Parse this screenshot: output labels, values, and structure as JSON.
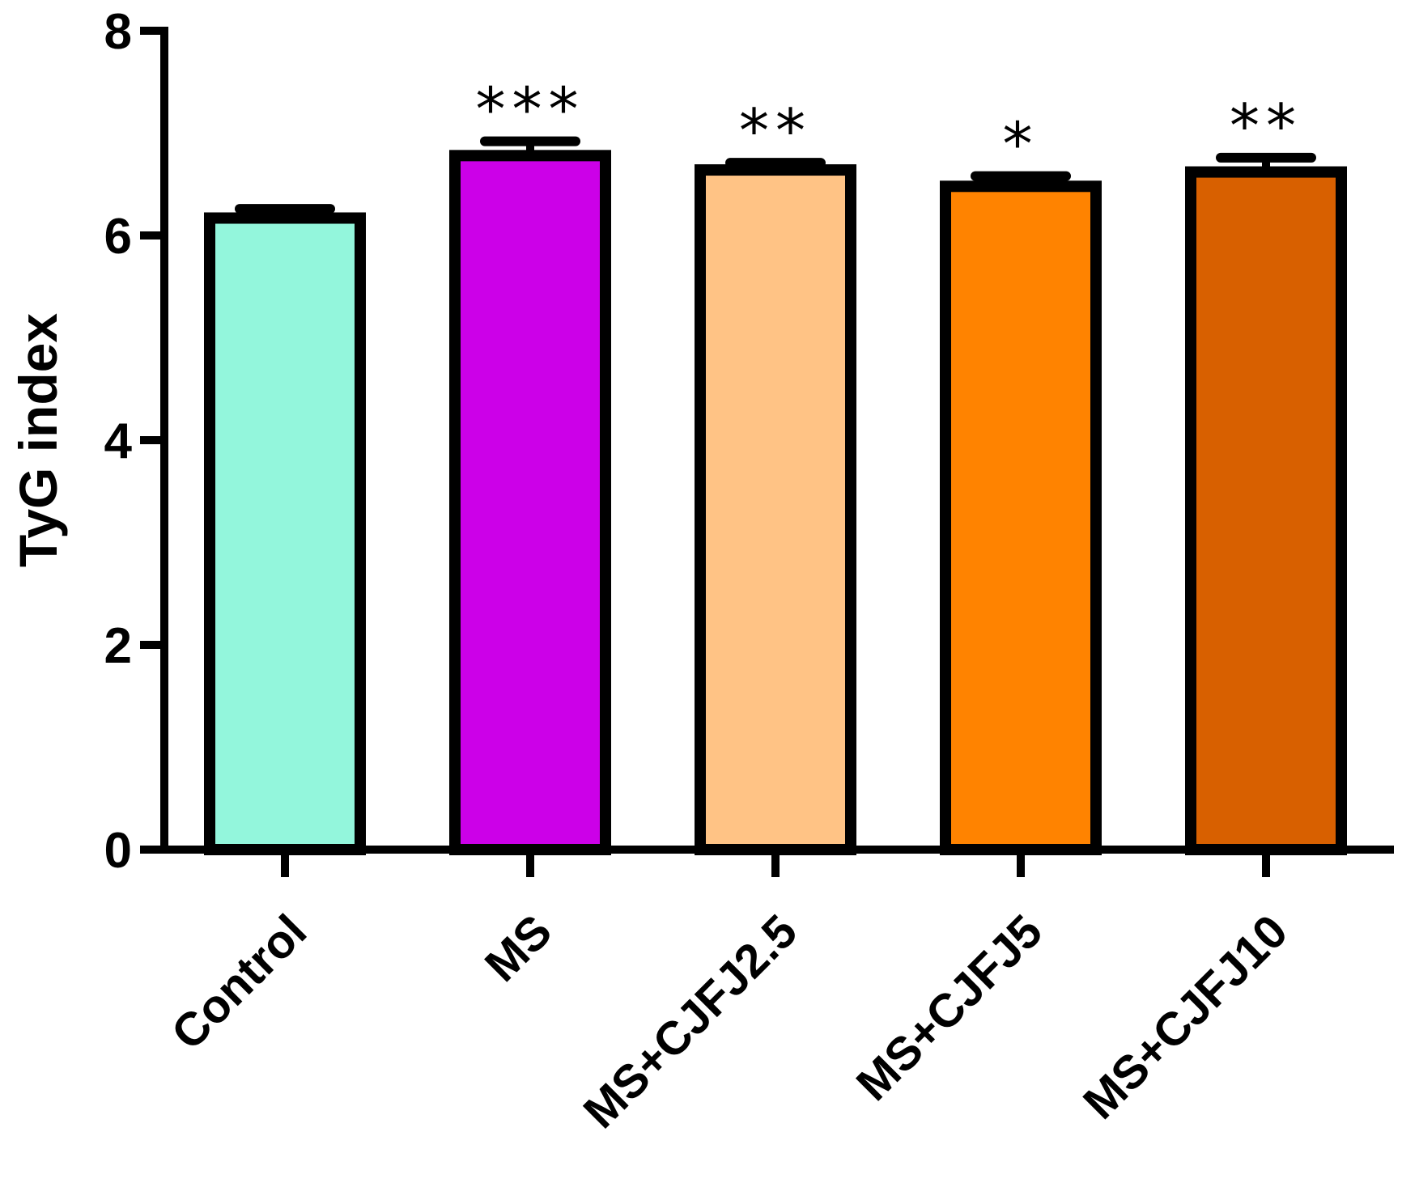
{
  "chart_data": {
    "type": "bar",
    "title": "",
    "xlabel": "",
    "ylabel": "TyG index",
    "ylim": [
      0,
      8
    ],
    "yticks": [
      "0",
      "2",
      "4",
      "6",
      "8"
    ],
    "categories": [
      "Control",
      "MS",
      "MS+CJFJ2.5",
      "MS+CJFJ5",
      "MS+CJFJ10"
    ],
    "values": [
      6.17,
      6.78,
      6.64,
      6.48,
      6.62
    ],
    "errors": [
      0.09,
      0.14,
      0.07,
      0.1,
      0.14
    ],
    "significance": [
      "",
      "***",
      "**",
      "*",
      "**"
    ],
    "colors": [
      "#93F6DC",
      "#CC00E8",
      "#FFC385",
      "#FF8300",
      "#D86000"
    ],
    "grid": false,
    "legend": "none"
  }
}
